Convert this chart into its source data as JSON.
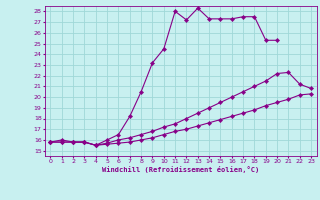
{
  "xlabel": "Windchill (Refroidissement éolien,°C)",
  "bg_color": "#c8f0f0",
  "line_color": "#880088",
  "grid_color": "#a0d8d8",
  "xmin": 0,
  "xmax": 23,
  "ymin": 15,
  "ymax": 28,
  "series1_x": [
    0,
    1,
    2,
    3,
    4,
    5,
    6,
    7,
    8,
    9,
    10,
    11,
    12,
    13,
    14,
    15,
    16,
    17,
    18,
    19,
    20
  ],
  "series1_y": [
    15.8,
    16.0,
    15.8,
    15.8,
    15.5,
    16.0,
    16.5,
    18.2,
    20.5,
    23.2,
    24.5,
    28.0,
    27.2,
    28.3,
    27.3,
    27.3,
    27.3,
    27.5,
    27.5,
    25.3,
    25.3
  ],
  "series2_x": [
    0,
    1,
    2,
    3,
    4,
    5,
    6,
    7,
    8,
    9,
    10,
    11,
    12,
    13,
    14,
    15,
    16,
    17,
    18,
    19,
    20,
    21,
    22,
    23
  ],
  "series2_y": [
    15.8,
    15.8,
    15.8,
    15.8,
    15.5,
    15.7,
    16.0,
    16.2,
    16.5,
    16.8,
    17.2,
    17.5,
    18.0,
    18.5,
    19.0,
    19.5,
    20.0,
    20.5,
    21.0,
    21.5,
    22.2,
    22.3,
    21.2,
    20.8
  ],
  "series3_x": [
    0,
    1,
    2,
    3,
    4,
    5,
    6,
    7,
    8,
    9,
    10,
    11,
    12,
    13,
    14,
    15,
    16,
    17,
    18,
    19,
    20,
    21,
    22,
    23
  ],
  "series3_y": [
    15.8,
    15.8,
    15.8,
    15.8,
    15.5,
    15.6,
    15.7,
    15.8,
    16.0,
    16.2,
    16.5,
    16.8,
    17.0,
    17.3,
    17.6,
    17.9,
    18.2,
    18.5,
    18.8,
    19.2,
    19.5,
    19.8,
    20.2,
    20.3
  ]
}
